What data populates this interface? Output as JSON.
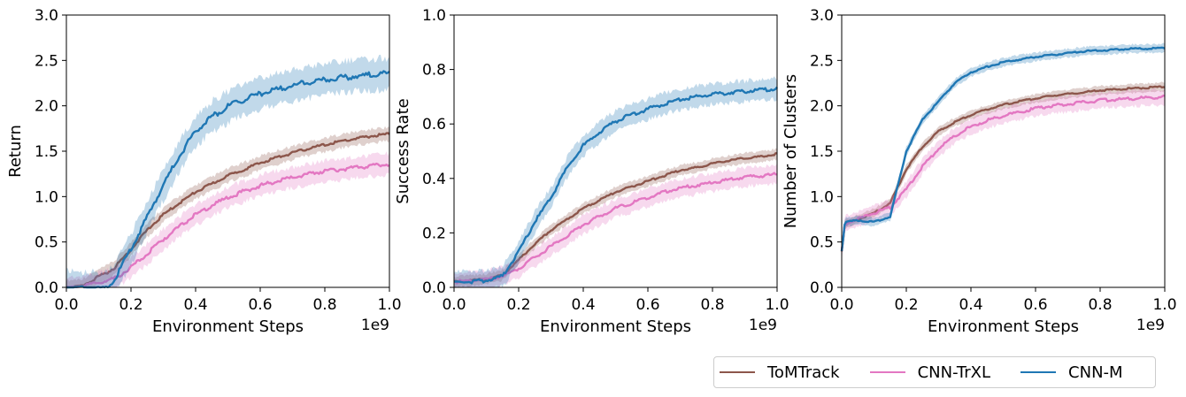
{
  "legend": {
    "items": [
      {
        "label": "ToMTrack",
        "color": "#8c564b"
      },
      {
        "label": "CNN-TrXL",
        "color": "#e377c2"
      },
      {
        "label": "CNN-M",
        "color": "#1f77b4"
      }
    ]
  },
  "chart_data": [
    {
      "type": "line",
      "title": "",
      "xlabel": "Environment Steps",
      "ylabel": "Return",
      "x_scale_label": "1e9",
      "xlim": [
        0.0,
        1.0
      ],
      "ylim": [
        0.0,
        3.0
      ],
      "xticks": [
        "0.0",
        "0.2",
        "0.4",
        "0.6",
        "0.8",
        "1.0"
      ],
      "yticks": [
        "0.0",
        "0.5",
        "1.0",
        "1.5",
        "2.0",
        "2.5",
        "3.0"
      ],
      "x": [
        0.0,
        0.05,
        0.1,
        0.13,
        0.15,
        0.2,
        0.25,
        0.3,
        0.35,
        0.4,
        0.45,
        0.5,
        0.55,
        0.6,
        0.65,
        0.7,
        0.75,
        0.8,
        0.85,
        0.9,
        0.95,
        1.0
      ],
      "series": [
        {
          "name": "ToMTrack",
          "color": "#8c564b",
          "band": 0.08,
          "values": [
            0.0,
            0.02,
            0.12,
            0.17,
            0.22,
            0.42,
            0.63,
            0.8,
            0.93,
            1.05,
            1.14,
            1.23,
            1.3,
            1.37,
            1.43,
            1.48,
            1.53,
            1.57,
            1.61,
            1.64,
            1.67,
            1.69
          ]
        },
        {
          "name": "CNN-TrXL",
          "color": "#e377c2",
          "band": 0.12,
          "values": [
            0.0,
            0.01,
            0.05,
            0.08,
            0.1,
            0.22,
            0.37,
            0.53,
            0.67,
            0.8,
            0.9,
            0.99,
            1.06,
            1.12,
            1.17,
            1.21,
            1.25,
            1.28,
            1.3,
            1.32,
            1.34,
            1.36
          ]
        },
        {
          "name": "CNN-M",
          "color": "#1f77b4",
          "band": 0.18,
          "values": [
            0.0,
            0.0,
            0.0,
            0.0,
            0.1,
            0.42,
            0.78,
            1.13,
            1.45,
            1.72,
            1.88,
            1.99,
            2.07,
            2.13,
            2.18,
            2.22,
            2.26,
            2.29,
            2.31,
            2.33,
            2.34,
            2.36
          ]
        }
      ]
    },
    {
      "type": "line",
      "title": "",
      "xlabel": "Environment Steps",
      "ylabel": "Success Rate",
      "x_scale_label": "1e9",
      "xlim": [
        0.0,
        1.0
      ],
      "ylim": [
        0.0,
        1.0
      ],
      "xticks": [
        "0.0",
        "0.2",
        "0.4",
        "0.6",
        "0.8",
        "1.0"
      ],
      "yticks": [
        "0.0",
        "0.2",
        "0.4",
        "0.6",
        "0.8",
        "1.0"
      ],
      "x": [
        0.0,
        0.05,
        0.1,
        0.15,
        0.2,
        0.25,
        0.3,
        0.35,
        0.4,
        0.45,
        0.5,
        0.55,
        0.6,
        0.65,
        0.7,
        0.75,
        0.8,
        0.85,
        0.9,
        0.95,
        1.0
      ],
      "series": [
        {
          "name": "ToMTrack",
          "color": "#8c564b",
          "band": 0.02,
          "values": [
            0.02,
            0.025,
            0.03,
            0.045,
            0.1,
            0.16,
            0.21,
            0.25,
            0.29,
            0.32,
            0.35,
            0.37,
            0.39,
            0.41,
            0.43,
            0.44,
            0.455,
            0.465,
            0.475,
            0.48,
            0.49
          ]
        },
        {
          "name": "CNN-TrXL",
          "color": "#e377c2",
          "band": 0.035,
          "values": [
            0.02,
            0.025,
            0.03,
            0.04,
            0.07,
            0.11,
            0.15,
            0.19,
            0.23,
            0.26,
            0.29,
            0.31,
            0.33,
            0.35,
            0.365,
            0.375,
            0.385,
            0.395,
            0.405,
            0.41,
            0.415
          ]
        },
        {
          "name": "CNN-M",
          "color": "#1f77b4",
          "band": 0.04,
          "values": [
            0.02,
            0.02,
            0.025,
            0.04,
            0.13,
            0.24,
            0.33,
            0.44,
            0.52,
            0.57,
            0.61,
            0.635,
            0.655,
            0.675,
            0.69,
            0.7,
            0.71,
            0.715,
            0.72,
            0.725,
            0.73
          ]
        }
      ]
    },
    {
      "type": "line",
      "title": "",
      "xlabel": "Environment Steps",
      "ylabel": "Number of Clusters",
      "x_scale_label": "1e9",
      "xlim": [
        0.0,
        1.0
      ],
      "ylim": [
        0.0,
        3.0
      ],
      "xticks": [
        "0.0",
        "0.2",
        "0.4",
        "0.6",
        "0.8",
        "1.0"
      ],
      "yticks": [
        "0.0",
        "0.5",
        "1.0",
        "1.5",
        "2.0",
        "2.5",
        "3.0"
      ],
      "x": [
        0.0,
        0.01,
        0.05,
        0.1,
        0.15,
        0.2,
        0.25,
        0.3,
        0.35,
        0.4,
        0.45,
        0.5,
        0.55,
        0.6,
        0.65,
        0.7,
        0.75,
        0.8,
        0.85,
        0.9,
        0.95,
        1.0
      ],
      "series": [
        {
          "name": "ToMTrack",
          "color": "#8c564b",
          "band": 0.05,
          "values": [
            0.4,
            0.7,
            0.75,
            0.82,
            0.93,
            1.3,
            1.55,
            1.72,
            1.82,
            1.9,
            1.96,
            2.01,
            2.05,
            2.08,
            2.11,
            2.13,
            2.15,
            2.17,
            2.18,
            2.19,
            2.2,
            2.21
          ]
        },
        {
          "name": "CNN-TrXL",
          "color": "#e377c2",
          "band": 0.09,
          "values": [
            0.4,
            0.7,
            0.75,
            0.82,
            0.88,
            1.08,
            1.33,
            1.53,
            1.67,
            1.77,
            1.84,
            1.89,
            1.93,
            1.97,
            2.0,
            2.02,
            2.04,
            2.06,
            2.07,
            2.08,
            2.09,
            2.1
          ]
        },
        {
          "name": "CNN-M",
          "color": "#1f77b4",
          "band": 0.05,
          "values": [
            0.4,
            0.72,
            0.74,
            0.72,
            0.78,
            1.5,
            1.85,
            2.05,
            2.25,
            2.37,
            2.43,
            2.48,
            2.51,
            2.54,
            2.56,
            2.58,
            2.6,
            2.61,
            2.62,
            2.63,
            2.63,
            2.64
          ]
        }
      ]
    }
  ]
}
